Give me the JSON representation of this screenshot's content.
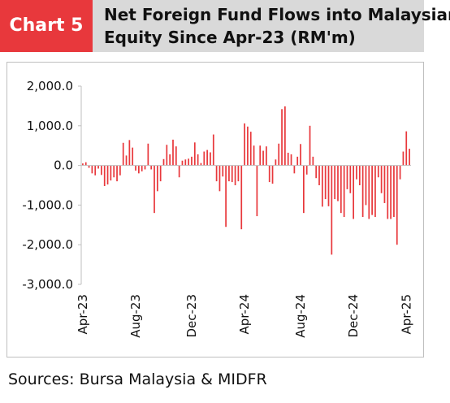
{
  "header": {
    "tag": "Chart 5",
    "title_line1": "Net Foreign Fund Flows into Malaysian",
    "title_line2": "Equity Since Apr-23 (RM'm)"
  },
  "source": "Sources: Bursa Malaysia & MIDFR",
  "colors": {
    "bar": "#e8383c",
    "tag_bg": "#e8383c",
    "header_bg": "#d9d9d9"
  },
  "chart_data": {
    "type": "bar",
    "ylim": [
      -3000,
      2000
    ],
    "yticks": [
      "2,000.0",
      "1,000.0",
      "0.0",
      "-1,000.0",
      "-2,000.0",
      "-3,000.0"
    ],
    "ytick_values": [
      2000,
      1000,
      0,
      -1000,
      -2000,
      -3000
    ],
    "xtick_labels": [
      "Apr-23",
      "Aug-23",
      "Dec-23",
      "Apr-24",
      "Aug-24",
      "Dec-24",
      "Apr-25"
    ],
    "xtick_positions": [
      0,
      17,
      35,
      52,
      70,
      87,
      104
    ],
    "grid": false,
    "legend": "none",
    "period": "weekly",
    "values": [
      50,
      80,
      -60,
      -200,
      -250,
      -80,
      -240,
      -520,
      -480,
      -380,
      -300,
      -400,
      -250,
      570,
      250,
      640,
      450,
      -130,
      -200,
      -150,
      -100,
      550,
      -100,
      -1200,
      -650,
      -400,
      160,
      520,
      280,
      650,
      480,
      -300,
      120,
      150,
      170,
      220,
      580,
      280,
      60,
      350,
      390,
      330,
      780,
      -400,
      -650,
      -280,
      -1550,
      -400,
      -420,
      -500,
      -400,
      -1610,
      1060,
      980,
      850,
      500,
      -1280,
      500,
      370,
      480,
      -420,
      -460,
      150,
      550,
      1420,
      1490,
      320,
      280,
      -200,
      220,
      540,
      -1200,
      -230,
      1000,
      220,
      -320,
      -500,
      -1040,
      -850,
      -1030,
      -2250,
      -850,
      -900,
      -1200,
      -1300,
      -600,
      -700,
      -1350,
      -350,
      -500,
      -1300,
      -1000,
      -1350,
      -1250,
      -1300,
      -300,
      -700,
      -950,
      -1350,
      -1350,
      -1300,
      -2000,
      -350,
      350,
      860,
      420
    ]
  }
}
